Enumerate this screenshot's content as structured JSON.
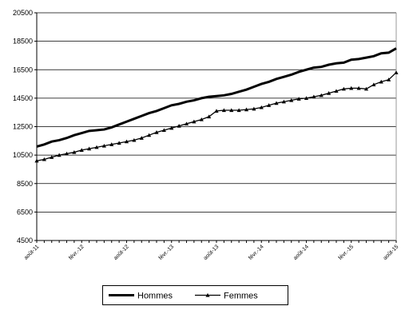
{
  "chart_data": {
    "type": "line",
    "categories": [
      "août-11",
      null,
      null,
      null,
      null,
      null,
      "févr.-12",
      null,
      null,
      null,
      null,
      null,
      "août-12",
      null,
      null,
      null,
      null,
      null,
      "févr.-13",
      null,
      null,
      null,
      null,
      null,
      "août-13",
      null,
      null,
      null,
      null,
      null,
      "févr.-14",
      null,
      null,
      null,
      null,
      null,
      "août-14",
      null,
      null,
      null,
      null,
      null,
      "févr.-15",
      null,
      null,
      null,
      null,
      null,
      "août-15"
    ],
    "series": [
      {
        "name": "Hommes",
        "color": "#000000",
        "marker": "none",
        "values": [
          11100,
          11250,
          11450,
          11550,
          11700,
          11900,
          12050,
          12200,
          12250,
          12300,
          12450,
          12650,
          12850,
          13050,
          13250,
          13450,
          13600,
          13800,
          14000,
          14100,
          14250,
          14350,
          14500,
          14600,
          14650,
          14700,
          14800,
          14950,
          15100,
          15300,
          15500,
          15650,
          15850,
          16000,
          16150,
          16350,
          16500,
          16650,
          16700,
          16850,
          16950,
          17000,
          17200,
          17250,
          17350,
          17450,
          17650,
          17700,
          18000
        ]
      },
      {
        "name": "Femmes",
        "color": "#000000",
        "marker": "triangle",
        "values": [
          10100,
          10200,
          10350,
          10500,
          10600,
          10700,
          10850,
          10950,
          11050,
          11150,
          11250,
          11350,
          11450,
          11550,
          11700,
          11900,
          12100,
          12250,
          12400,
          12550,
          12700,
          12850,
          13000,
          13200,
          13600,
          13650,
          13650,
          13650,
          13700,
          13750,
          13850,
          14000,
          14150,
          14250,
          14350,
          14450,
          14500,
          14600,
          14700,
          14850,
          15000,
          15150,
          15200,
          15200,
          15150,
          15450,
          15650,
          15800,
          16300
        ]
      }
    ],
    "ylim": [
      4500,
      20500
    ],
    "yticks": [
      4500,
      6500,
      8500,
      10500,
      12500,
      14500,
      16500,
      18500,
      20500
    ],
    "grid": true
  }
}
